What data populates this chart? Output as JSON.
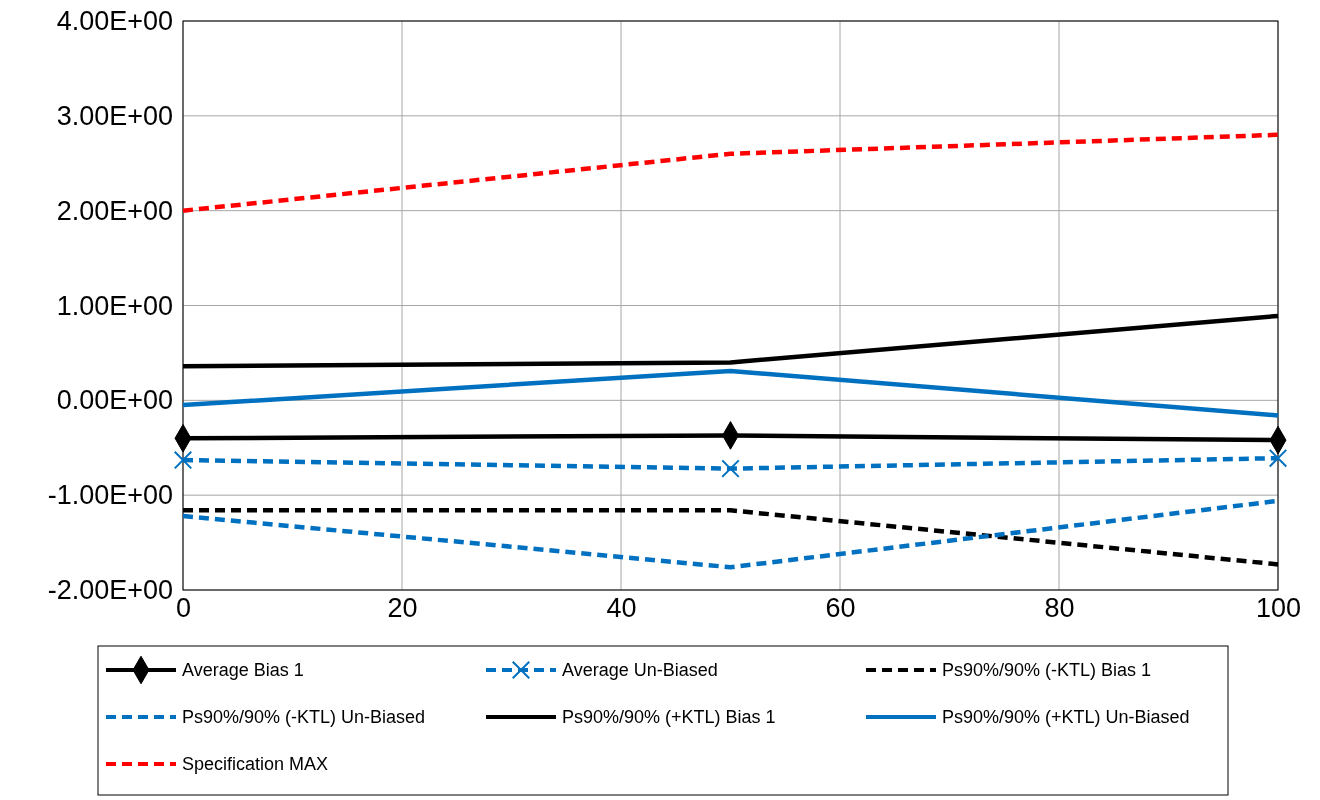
{
  "chart_data": {
    "type": "line",
    "x": [
      0,
      50,
      100
    ],
    "xlim": [
      0,
      100
    ],
    "xticks": [
      0,
      20,
      40,
      60,
      80,
      100
    ],
    "ylim": [
      -2,
      4
    ],
    "yticks": [
      {
        "value": -2,
        "label": "-2.00E+00"
      },
      {
        "value": -1,
        "label": "-1.00E+00"
      },
      {
        "value": 0,
        "label": "0.00E+00"
      },
      {
        "value": 1,
        "label": "1.00E+00"
      },
      {
        "value": 2,
        "label": "2.00E+00"
      },
      {
        "value": 3,
        "label": "3.00E+00"
      },
      {
        "value": 4,
        "label": "4.00E+00"
      }
    ],
    "grid": true,
    "legend": "bottom",
    "series": [
      {
        "name": "Average Bias 1",
        "color": "#000000",
        "values": [
          -0.4,
          -0.37,
          -0.42
        ],
        "marker": "diamond",
        "line_style": "solid"
      },
      {
        "name": "Average Un-Biased",
        "color": "#0070c0",
        "values": [
          -0.63,
          -0.72,
          -0.61
        ],
        "marker": "cross",
        "line_style": "dashed"
      },
      {
        "name": "Ps90%/90% (-KTL) Bias 1",
        "color": "#000000",
        "values": [
          -1.16,
          -1.16,
          -1.73
        ],
        "marker": "none",
        "line_style": "dashed"
      },
      {
        "name": "Ps90%/90% (-KTL) Un-Biased",
        "color": "#0070c0",
        "values": [
          -1.22,
          -1.76,
          -1.06
        ],
        "marker": "none",
        "line_style": "dashed"
      },
      {
        "name": "Ps90%/90% (+KTL) Bias 1",
        "color": "#000000",
        "values": [
          0.36,
          0.4,
          0.89
        ],
        "marker": "none",
        "line_style": "solid"
      },
      {
        "name": "Ps90%/90% (+KTL) Un-Biased",
        "color": "#0070c0",
        "values": [
          -0.05,
          0.31,
          -0.16
        ],
        "marker": "none",
        "line_style": "solid"
      },
      {
        "name": "Specification MAX",
        "color": "#ff0000",
        "values": [
          2.0,
          2.6,
          2.8
        ],
        "marker": "none",
        "line_style": "dashed"
      }
    ]
  }
}
